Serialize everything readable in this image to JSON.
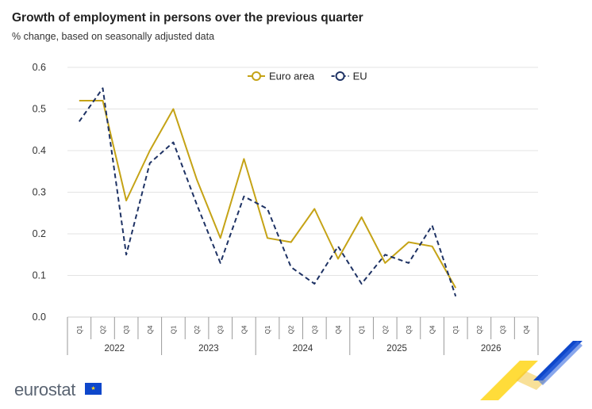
{
  "header": {
    "title": "Growth of employment in persons over the previous quarter",
    "subtitle": "% change, based on seasonally adjusted data"
  },
  "footer": {
    "logo_text": "eurostat"
  },
  "icons": {
    "flag": "eu-flag-icon",
    "decoration": "eurostat-stripes-icon"
  },
  "colors": {
    "euro_area": "#c5a316",
    "eu": "#1e3264",
    "grid": "#e3e3e3",
    "accent_blue": "#0e47cb",
    "accent_yellow": "#ffd617"
  },
  "chart_data": {
    "type": "line",
    "title": "Growth of employment in persons over the previous quarter",
    "subtitle": "% change, based on seasonally adjusted data",
    "ylim": [
      0,
      0.6
    ],
    "y_ticks": [
      "0.0",
      "0.1",
      "0.2",
      "0.3",
      "0.4",
      "0.5",
      "0.6"
    ],
    "quarters": [
      "Q1",
      "Q2",
      "Q3",
      "Q4",
      "Q1",
      "Q2",
      "Q3",
      "Q4",
      "Q1",
      "Q2",
      "Q3",
      "Q4",
      "Q1",
      "Q2",
      "Q3",
      "Q4",
      "Q1",
      "Q2",
      "Q3",
      "Q4"
    ],
    "years": [
      "2022",
      "2023",
      "2024",
      "2025",
      "2026"
    ],
    "grid": true,
    "legend_position": "top-center",
    "series": [
      {
        "name": "Euro area",
        "style": "solid",
        "color": "#c5a316",
        "values": [
          0.52,
          0.52,
          0.28,
          0.4,
          0.5,
          0.33,
          0.19,
          0.38,
          0.19,
          0.18,
          0.26,
          0.14,
          0.24,
          0.13,
          0.18,
          0.17,
          0.07,
          null,
          null,
          null
        ]
      },
      {
        "name": "EU",
        "style": "dashed",
        "color": "#1e3264",
        "values": [
          0.47,
          0.55,
          0.15,
          0.37,
          0.42,
          0.27,
          0.13,
          0.29,
          0.26,
          0.12,
          0.08,
          0.17,
          0.08,
          0.15,
          0.13,
          0.22,
          0.05,
          null,
          null,
          null
        ]
      }
    ]
  }
}
